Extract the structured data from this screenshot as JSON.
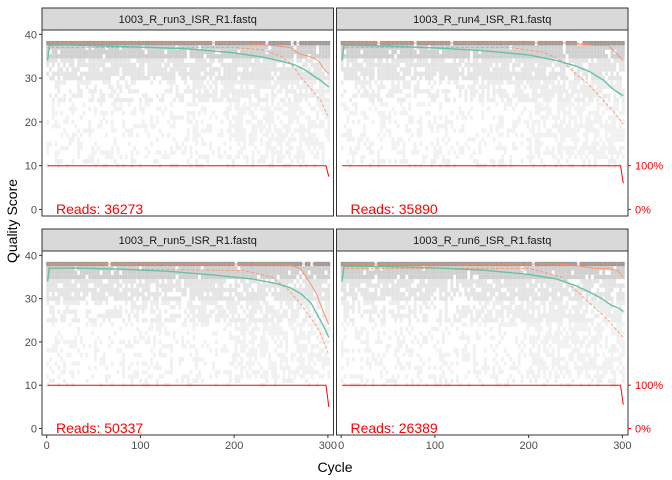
{
  "chart_data": {
    "type": "line",
    "xlabel": "Cycle",
    "ylabel": "Quality Score",
    "xlim": [
      -5,
      306
    ],
    "ylim": [
      -1.5,
      41
    ],
    "x_ticks": [
      0,
      100,
      200,
      300
    ],
    "y_ticks": [
      0,
      10,
      20,
      30,
      40
    ],
    "secondary_axis": {
      "labels": [
        "100%",
        "0%"
      ],
      "values": [
        10,
        0
      ]
    },
    "legend": "none",
    "colors": {
      "mean": "#66c2a5",
      "median": "#fc8d62",
      "quartile": "#fc8d62",
      "reads_line": "#ff0000",
      "reads_text": "#ff0000",
      "strip_bg": "#d9d9d9",
      "heat_dark": "#6b6b6b",
      "heat_light": "#f2f2f2"
    },
    "panels": [
      {
        "title": "1003_R_run3_ISR_R1.fastq",
        "reads_label": "Reads:",
        "reads_value": "36273",
        "mean": [
          [
            1,
            34.0
          ],
          [
            3,
            37.5
          ],
          [
            20,
            37.6
          ],
          [
            50,
            37.4
          ],
          [
            100,
            37.1
          ],
          [
            150,
            36.7
          ],
          [
            200,
            35.8
          ],
          [
            230,
            34.8
          ],
          [
            250,
            33.9
          ],
          [
            265,
            33.0
          ],
          [
            275,
            32.0
          ],
          [
            285,
            30.5
          ],
          [
            292,
            29.5
          ],
          [
            298,
            28.5
          ],
          [
            301,
            28.0
          ]
        ],
        "median": [
          [
            1,
            34.0
          ],
          [
            3,
            38.0
          ],
          [
            200,
            38.0
          ],
          [
            240,
            37.5
          ],
          [
            260,
            37.0
          ],
          [
            270,
            35.5
          ],
          [
            280,
            35.0
          ],
          [
            290,
            34.0
          ],
          [
            296,
            32.0
          ],
          [
            301,
            31.0
          ]
        ],
        "q25": [
          [
            1,
            34.0
          ],
          [
            3,
            37.0
          ],
          [
            200,
            37.0
          ],
          [
            230,
            36.5
          ],
          [
            250,
            35.0
          ],
          [
            262,
            33.0
          ],
          [
            272,
            30.0
          ],
          [
            282,
            27.5
          ],
          [
            292,
            25.0
          ],
          [
            301,
            21.0
          ]
        ],
        "q75": [
          [
            1,
            34.0
          ],
          [
            3,
            38.0
          ],
          [
            301,
            38.0
          ]
        ],
        "reads_pct": [
          [
            1,
            10.0
          ],
          [
            298,
            10.0
          ],
          [
            301,
            7.5
          ]
        ],
        "show_right_axis": false
      },
      {
        "title": "1003_R_run4_ISR_R1.fastq",
        "reads_label": "Reads:",
        "reads_value": "35890",
        "mean": [
          [
            1,
            34.0
          ],
          [
            3,
            37.5
          ],
          [
            50,
            37.3
          ],
          [
            100,
            36.9
          ],
          [
            150,
            36.3
          ],
          [
            200,
            35.3
          ],
          [
            230,
            34.0
          ],
          [
            250,
            32.8
          ],
          [
            265,
            31.5
          ],
          [
            280,
            29.5
          ],
          [
            290,
            27.5
          ],
          [
            297,
            26.5
          ],
          [
            301,
            26.0
          ]
        ],
        "median": [
          [
            1,
            34.0
          ],
          [
            3,
            38.0
          ],
          [
            240,
            38.0
          ],
          [
            270,
            37.5
          ],
          [
            285,
            37.5
          ],
          [
            292,
            36.0
          ],
          [
            301,
            34.0
          ]
        ],
        "q25": [
          [
            1,
            34.0
          ],
          [
            3,
            37.0
          ],
          [
            180,
            37.0
          ],
          [
            215,
            36.0
          ],
          [
            235,
            34.0
          ],
          [
            250,
            31.0
          ],
          [
            262,
            29.0
          ],
          [
            275,
            26.0
          ],
          [
            288,
            23.0
          ],
          [
            301,
            19.5
          ]
        ],
        "q75": [
          [
            1,
            34.0
          ],
          [
            3,
            38.0
          ],
          [
            301,
            38.0
          ]
        ],
        "reads_pct": [
          [
            1,
            10.0
          ],
          [
            298,
            10.0
          ],
          [
            301,
            6.0
          ]
        ],
        "show_right_axis": true
      },
      {
        "title": "1003_R_run5_ISR_R1.fastq",
        "reads_label": "Reads:",
        "reads_value": "50337",
        "mean": [
          [
            1,
            34.0
          ],
          [
            3,
            37.0
          ],
          [
            30,
            37.1
          ],
          [
            80,
            36.8
          ],
          [
            130,
            36.3
          ],
          [
            180,
            35.4
          ],
          [
            220,
            34.5
          ],
          [
            245,
            33.5
          ],
          [
            260,
            32.5
          ],
          [
            272,
            31.0
          ],
          [
            282,
            29.0
          ],
          [
            292,
            25.0
          ],
          [
            298,
            22.5
          ],
          [
            301,
            21.0
          ]
        ],
        "median": [
          [
            1,
            34.0
          ],
          [
            3,
            38.0
          ],
          [
            255,
            38.0
          ],
          [
            270,
            37.0
          ],
          [
            280,
            34.0
          ],
          [
            288,
            31.0
          ],
          [
            295,
            27.0
          ],
          [
            301,
            24.0
          ]
        ],
        "q25": [
          [
            1,
            34.0
          ],
          [
            3,
            37.0
          ],
          [
            210,
            36.5
          ],
          [
            240,
            35.0
          ],
          [
            258,
            32.0
          ],
          [
            270,
            29.0
          ],
          [
            280,
            26.0
          ],
          [
            290,
            23.0
          ],
          [
            301,
            17.0
          ]
        ],
        "q75": [
          [
            1,
            34.0
          ],
          [
            3,
            38.0
          ],
          [
            301,
            38.0
          ]
        ],
        "reads_pct": [
          [
            1,
            10.0
          ],
          [
            298,
            10.0
          ],
          [
            301,
            5.0
          ]
        ],
        "show_right_axis": false
      },
      {
        "title": "1003_R_run6_ISR_R1.fastq",
        "reads_label": "Reads:",
        "reads_value": "26389",
        "mean": [
          [
            1,
            34.0
          ],
          [
            3,
            37.5
          ],
          [
            50,
            37.4
          ],
          [
            100,
            37.1
          ],
          [
            150,
            36.6
          ],
          [
            200,
            35.6
          ],
          [
            230,
            34.5
          ],
          [
            250,
            33.0
          ],
          [
            265,
            31.5
          ],
          [
            278,
            30.0
          ],
          [
            288,
            28.5
          ],
          [
            296,
            27.8
          ],
          [
            301,
            27.0
          ]
        ],
        "median": [
          [
            1,
            34.0
          ],
          [
            3,
            38.0
          ],
          [
            230,
            38.0
          ],
          [
            255,
            37.5
          ],
          [
            270,
            37.0
          ],
          [
            285,
            37.0
          ],
          [
            295,
            36.5
          ],
          [
            301,
            35.0
          ]
        ],
        "q25": [
          [
            1,
            34.0
          ],
          [
            3,
            37.0
          ],
          [
            200,
            37.0
          ],
          [
            235,
            35.0
          ],
          [
            255,
            31.0
          ],
          [
            270,
            28.0
          ],
          [
            285,
            25.0
          ],
          [
            295,
            22.5
          ],
          [
            301,
            21.0
          ]
        ],
        "q75": [
          [
            1,
            34.0
          ],
          [
            3,
            38.0
          ],
          [
            301,
            38.0
          ]
        ],
        "reads_pct": [
          [
            1,
            10.0
          ],
          [
            298,
            10.0
          ],
          [
            301,
            5.5
          ]
        ],
        "show_right_axis": true
      }
    ]
  }
}
